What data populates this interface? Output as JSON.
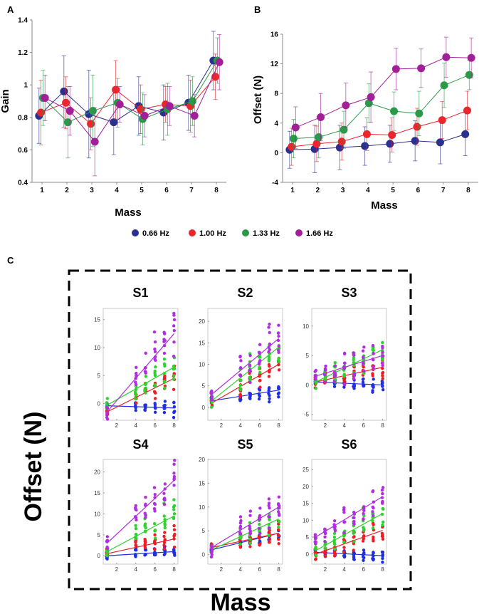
{
  "legend": [
    {
      "label": "0.66 Hz",
      "color": "#2b2f8f"
    },
    {
      "label": "1.00 Hz",
      "color": "#e8262b"
    },
    {
      "label": "1.33 Hz",
      "color": "#2a9a48"
    },
    {
      "label": "1.66 Hz",
      "color": "#a21f9a"
    }
  ],
  "chart_data": [
    {
      "panel": "A",
      "type": "line",
      "xlabel": "Mass",
      "ylabel": "Gain",
      "xlim": [
        0.6,
        8.4
      ],
      "ylim": [
        0.4,
        1.4
      ],
      "yticks": [
        0.4,
        0.6,
        0.8,
        1.0,
        1.2,
        1.4
      ],
      "yticklabels": [
        "0.4",
        "0.6",
        "0.8",
        "1",
        "1.2",
        "1.4"
      ],
      "x": [
        1,
        2,
        3,
        4,
        5,
        6,
        7,
        8
      ],
      "series": [
        {
          "name": "0.66 Hz",
          "values": [
            0.81,
            0.96,
            0.82,
            0.77,
            0.87,
            0.83,
            0.89,
            1.15
          ],
          "error": [
            0.17,
            0.22,
            0.27,
            0.2,
            0.18,
            0.17,
            0.17,
            0.18
          ]
        },
        {
          "name": "1.00 Hz",
          "values": [
            0.83,
            0.89,
            0.76,
            0.97,
            0.85,
            0.88,
            0.87,
            1.05
          ],
          "error": [
            0.2,
            0.16,
            0.16,
            0.18,
            0.15,
            0.11,
            0.16,
            0.14
          ]
        },
        {
          "name": "1.33 Hz",
          "values": [
            0.92,
            0.77,
            0.84,
            0.89,
            0.79,
            0.85,
            0.9,
            1.15
          ],
          "error": [
            0.17,
            0.22,
            0.22,
            0.15,
            0.16,
            0.16,
            0.15,
            0.14
          ]
        },
        {
          "name": "1.66 Hz",
          "values": [
            0.92,
            0.84,
            0.65,
            0.88,
            0.81,
            0.87,
            0.81,
            1.14
          ],
          "error": [
            0.14,
            0.15,
            0.21,
            0.11,
            0.13,
            0.12,
            0.13,
            0.17
          ]
        }
      ]
    },
    {
      "panel": "B",
      "type": "line",
      "xlabel": "Mass",
      "ylabel": "Offset (N)",
      "xlim": [
        0.6,
        8.4
      ],
      "ylim": [
        -4,
        16
      ],
      "yticks": [
        -4,
        0,
        4,
        8,
        12,
        16
      ],
      "yticklabels": [
        "-4",
        "0",
        "4",
        "8",
        "12",
        "16"
      ],
      "x": [
        1,
        2,
        3,
        4,
        5,
        6,
        7,
        8
      ],
      "series": [
        {
          "name": "0.66 Hz",
          "values": [
            0.4,
            0.5,
            0.7,
            0.9,
            1.2,
            1.6,
            1.4,
            2.5
          ],
          "error": [
            2.5,
            3.2,
            3.0,
            2.6,
            2.5,
            2.7,
            2.9,
            2.9
          ]
        },
        {
          "name": "1.00 Hz",
          "values": [
            0.8,
            1.2,
            1.5,
            2.5,
            2.4,
            3.5,
            4.4,
            5.7
          ],
          "error": [
            2.5,
            2.4,
            2.5,
            2.2,
            2.3,
            2.5,
            2.5,
            2.6
          ]
        },
        {
          "name": "1.33 Hz",
          "values": [
            1.9,
            2.1,
            3.1,
            6.7,
            5.6,
            5.3,
            9.1,
            10.5
          ],
          "error": [
            2.6,
            2.8,
            2.5,
            2.6,
            2.6,
            3.0,
            3.0,
            2.0
          ]
        },
        {
          "name": "1.66 Hz",
          "values": [
            3.4,
            4.8,
            6.4,
            7.5,
            11.3,
            11.4,
            12.9,
            12.8
          ],
          "error": [
            2.8,
            3.2,
            3.0,
            3.4,
            2.8,
            2.6,
            2.7,
            2.7
          ]
        }
      ]
    },
    {
      "panel": "C",
      "type": "scatter",
      "xlabel": "Mass",
      "ylabel": "Offset (N)",
      "subplots": [
        {
          "title": "S1",
          "ylim": [
            -3,
            17
          ],
          "yticks": [
            0,
            5,
            10,
            15
          ],
          "series": [
            {
              "name": "0.66 Hz",
              "start": -0.4,
              "end": -0.8
            },
            {
              "name": "1.00 Hz",
              "start": -1.5,
              "end": 4.5
            },
            {
              "name": "1.33 Hz",
              "start": -0.3,
              "end": 6.5
            },
            {
              "name": "1.66 Hz",
              "start": -1.5,
              "end": 12.5
            }
          ]
        },
        {
          "title": "S2",
          "ylim": [
            -3,
            23
          ],
          "yticks": [
            0,
            5,
            10,
            15,
            20
          ],
          "series": [
            {
              "name": "0.66 Hz",
              "start": 1.5,
              "end": 4.0
            },
            {
              "name": "1.00 Hz",
              "start": 1.0,
              "end": 10.0
            },
            {
              "name": "1.33 Hz",
              "start": 1.5,
              "end": 14.0
            },
            {
              "name": "1.66 Hz",
              "start": 3.0,
              "end": 16.0
            }
          ]
        },
        {
          "title": "S3",
          "ylim": [
            -6,
            13
          ],
          "yticks": [
            -5,
            0,
            5,
            10
          ],
          "series": [
            {
              "name": "0.66 Hz",
              "start": 0.5,
              "end": 0.0
            },
            {
              "name": "1.00 Hz",
              "start": 0.5,
              "end": 3.0
            },
            {
              "name": "1.33 Hz",
              "start": 0.5,
              "end": 6.0
            },
            {
              "name": "1.66 Hz",
              "start": 1.5,
              "end": 5.0
            }
          ]
        },
        {
          "title": "S4",
          "ylim": [
            -2,
            23
          ],
          "yticks": [
            0,
            5,
            10,
            15,
            20
          ],
          "series": [
            {
              "name": "0.66 Hz",
              "start": 0.0,
              "end": 1.0
            },
            {
              "name": "1.00 Hz",
              "start": 0.5,
              "end": 4.0
            },
            {
              "name": "1.33 Hz",
              "start": 1.0,
              "end": 9.5
            },
            {
              "name": "1.66 Hz",
              "start": 3.0,
              "end": 18.0
            }
          ]
        },
        {
          "title": "S5",
          "ylim": [
            -2,
            20
          ],
          "yticks": [
            0,
            5,
            10,
            15,
            20
          ],
          "series": [
            {
              "name": "0.66 Hz",
              "start": 1.0,
              "end": 4.5
            },
            {
              "name": "1.00 Hz",
              "start": 1.5,
              "end": 4.5
            },
            {
              "name": "1.33 Hz",
              "start": 1.0,
              "end": 7.5
            },
            {
              "name": "1.66 Hz",
              "start": 1.5,
              "end": 10.0
            }
          ]
        },
        {
          "title": "S6",
          "ylim": [
            -3,
            28
          ],
          "yticks": [
            0,
            5,
            10,
            15,
            20,
            25
          ],
          "series": [
            {
              "name": "0.66 Hz",
              "start": 0.5,
              "end": -0.5
            },
            {
              "name": "1.00 Hz",
              "start": 0.0,
              "end": 7.0
            },
            {
              "name": "1.33 Hz",
              "start": 1.0,
              "end": 12.0
            },
            {
              "name": "1.66 Hz",
              "start": 5.0,
              "end": 17.0
            }
          ]
        }
      ]
    }
  ]
}
